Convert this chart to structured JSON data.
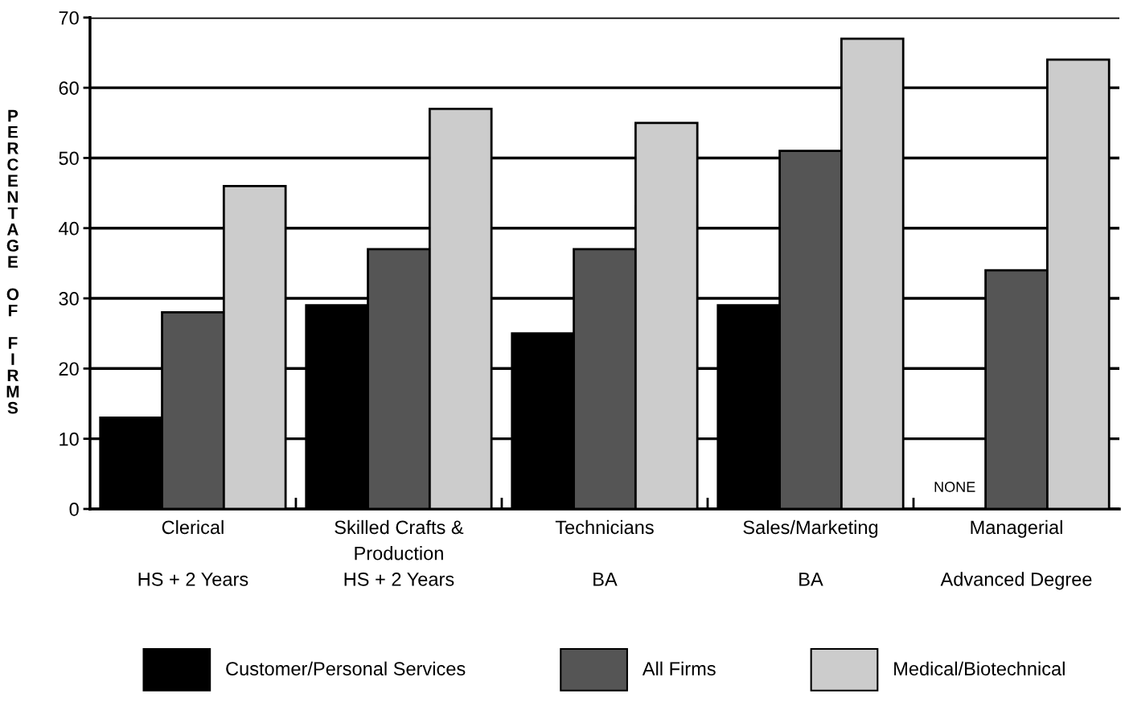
{
  "chart_data": {
    "type": "bar",
    "ylabel": "PERCENTAGE OF FIRMS",
    "categories": [
      "Clerical\n\nHS + 2 Years",
      "Skilled Crafts &\nProduction\nHS + 2 Years",
      "Technicians\n\nBA",
      "Sales/Marketing\n\nBA",
      "Managerial\n\nAdvanced Degree"
    ],
    "series": [
      {
        "name": "Customer/Personal Services",
        "color": "#000000",
        "values": [
          13,
          29,
          25,
          29,
          null
        ]
      },
      {
        "name": "All Firms",
        "color": "#555555",
        "values": [
          28,
          37,
          37,
          51,
          34
        ]
      },
      {
        "name": "Medical/Biotechnical",
        "color": "#cccccc",
        "values": [
          46,
          57,
          55,
          67,
          64
        ]
      }
    ],
    "ylim": [
      0,
      70
    ],
    "yticks": [
      0,
      10,
      20,
      30,
      40,
      50,
      60,
      70
    ],
    "grid": "y",
    "legend": "bottom",
    "annotations": [
      "NONE"
    ]
  }
}
